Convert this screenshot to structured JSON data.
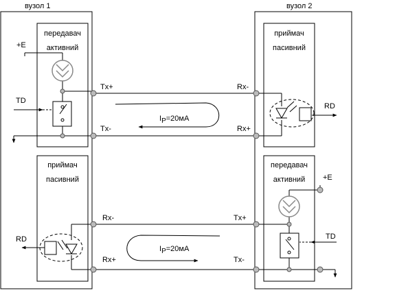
{
  "node1": {
    "title": "вузол 1"
  },
  "node2": {
    "title": "вузол 2"
  },
  "blocks": {
    "n1_tx_title1": "передавач",
    "n1_tx_title2": "активний",
    "n1_rx_title1": "приймач",
    "n1_rx_title2": "пасивний",
    "n2_rx_title1": "приймач",
    "n2_rx_title2": "пасивний",
    "n2_tx_title1": "передавач",
    "n2_tx_title2": "активний"
  },
  "signals": {
    "plus_e": "+E",
    "td": "TD",
    "rd": "RD",
    "tx_plus": "Tx+",
    "tx_minus": "Tx-",
    "rx_plus": "Rx+",
    "rx_minus": "Rx-"
  },
  "current": {
    "symbol": "I",
    "subscript": "P",
    "value": "=20мА"
  }
}
